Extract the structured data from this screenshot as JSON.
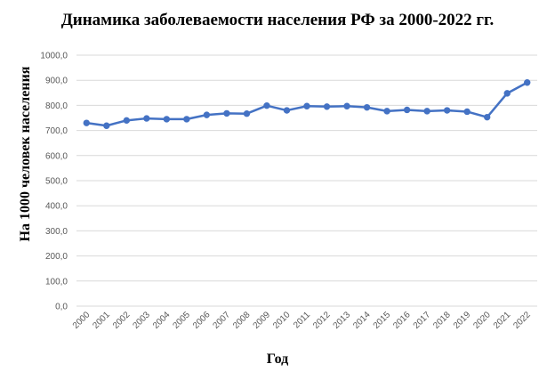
{
  "chart_data": {
    "type": "line",
    "title": "Динамика заболеваемости населения РФ за 2000-2022 гг.",
    "xlabel": "Год",
    "ylabel": "На 1000 человек населения",
    "ylim": [
      0,
      1000
    ],
    "y_ticks": [
      "0,0",
      "100,0",
      "200,0",
      "300,0",
      "400,0",
      "500,0",
      "600,0",
      "700,0",
      "800,0",
      "900,0",
      "1000,0"
    ],
    "grid": true,
    "categories": [
      "2000",
      "2001",
      "2002",
      "2003",
      "2004",
      "2005",
      "2006",
      "2007",
      "2008",
      "2009",
      "2010",
      "2011",
      "2012",
      "2013",
      "2014",
      "2015",
      "2016",
      "2017",
      "2018",
      "2019",
      "2020",
      "2021",
      "2022"
    ],
    "series": [
      {
        "color": "#4472c4",
        "values": [
          730,
          719,
          740,
          748,
          745,
          745,
          762,
          768,
          767,
          799,
          780,
          797,
          795,
          797,
          792,
          777,
          782,
          777,
          780,
          775,
          753,
          848,
          891
        ]
      }
    ]
  }
}
